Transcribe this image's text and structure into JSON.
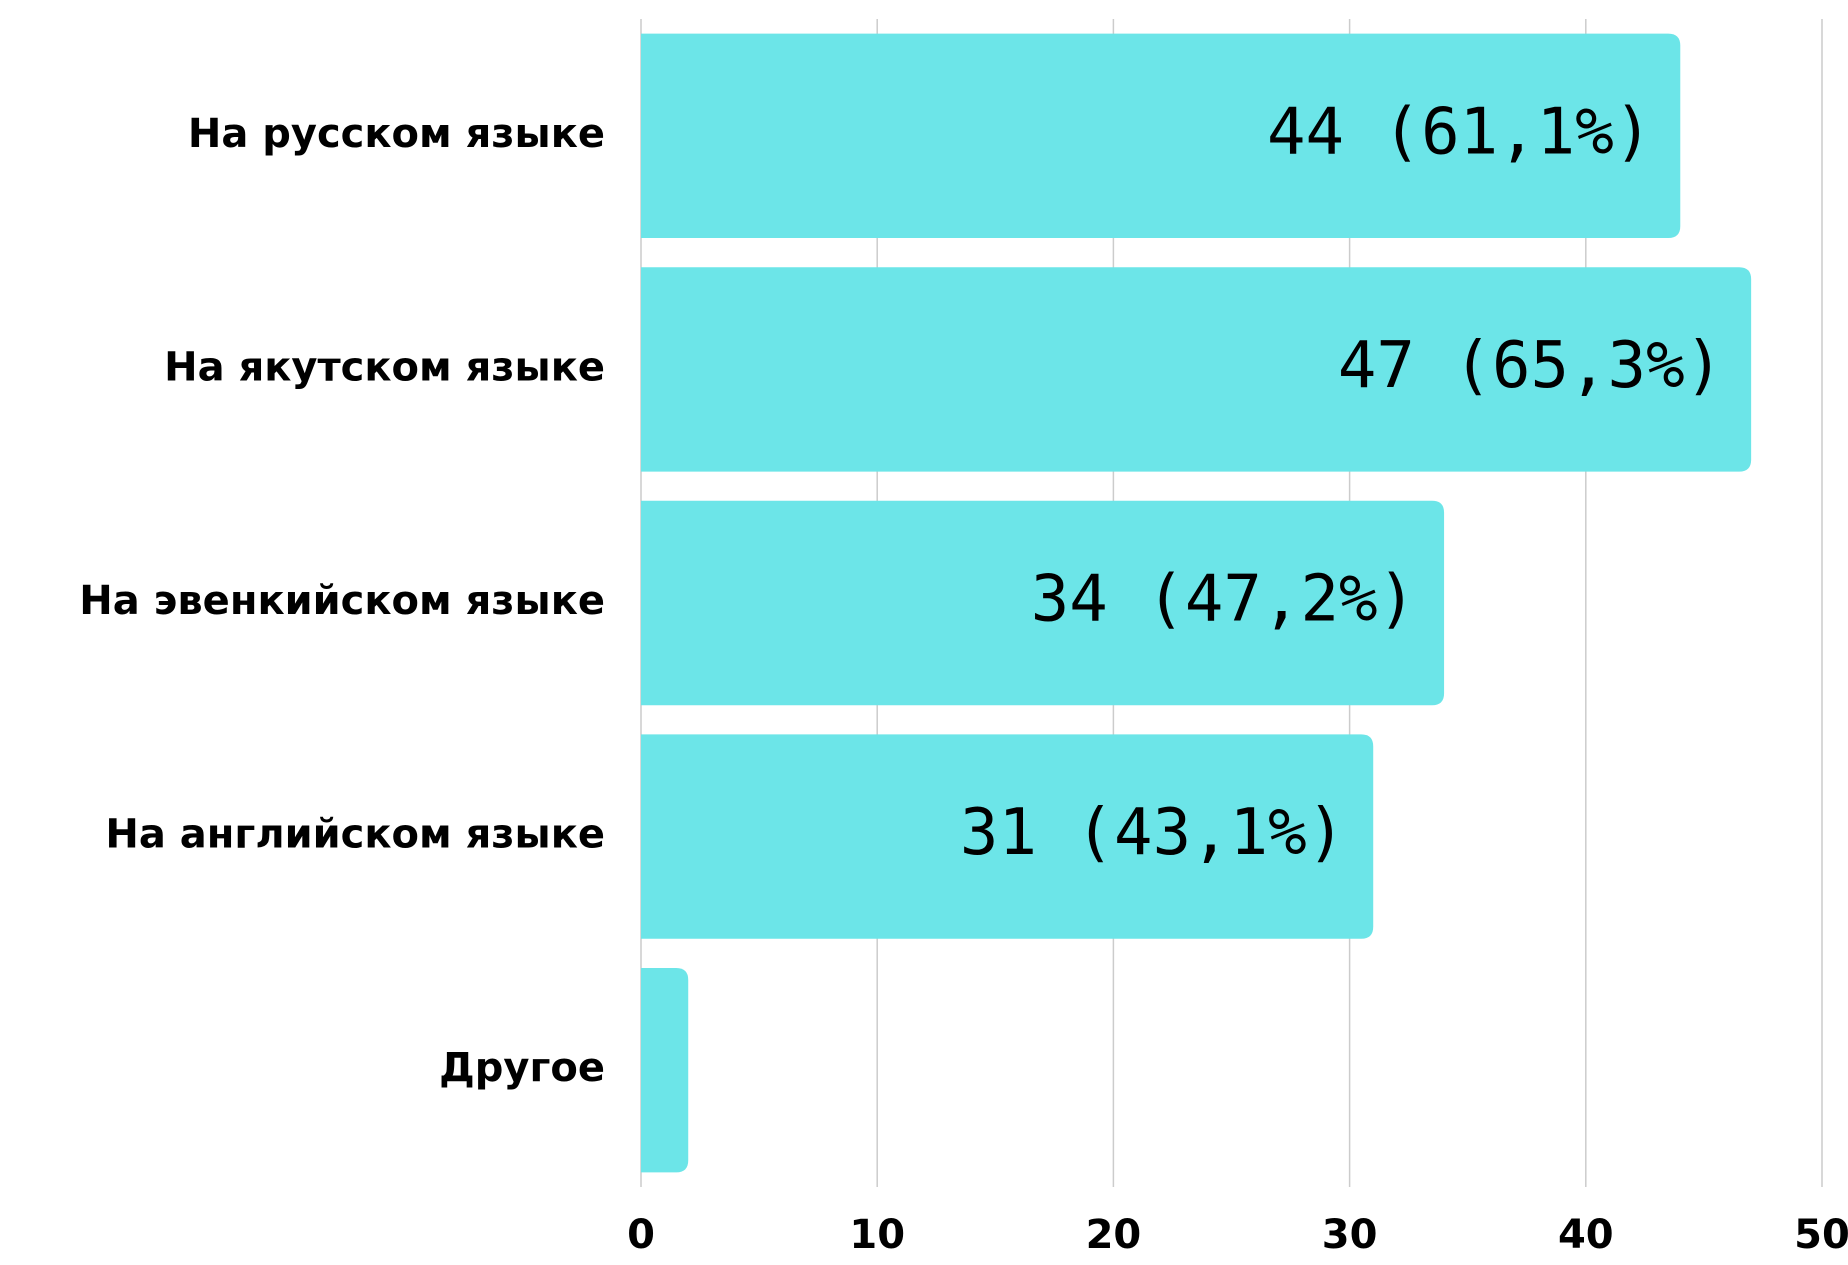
{
  "chart_data": {
    "type": "hbar",
    "categories": [
      "На русском языке",
      "На якутском языке",
      "На эвенкийском языке",
      "На английском языке",
      "Другое"
    ],
    "values": [
      44,
      47,
      34,
      31,
      2
    ],
    "value_labels": [
      "44 (61,1%)",
      "47 (65,3%)",
      "34 (47,2%)",
      "31 (43,1%)",
      null
    ],
    "color": "#6ce5e8",
    "xlim": [
      0,
      50
    ],
    "xticks": [
      0,
      10,
      20,
      30,
      40,
      50
    ],
    "grid": true
  }
}
